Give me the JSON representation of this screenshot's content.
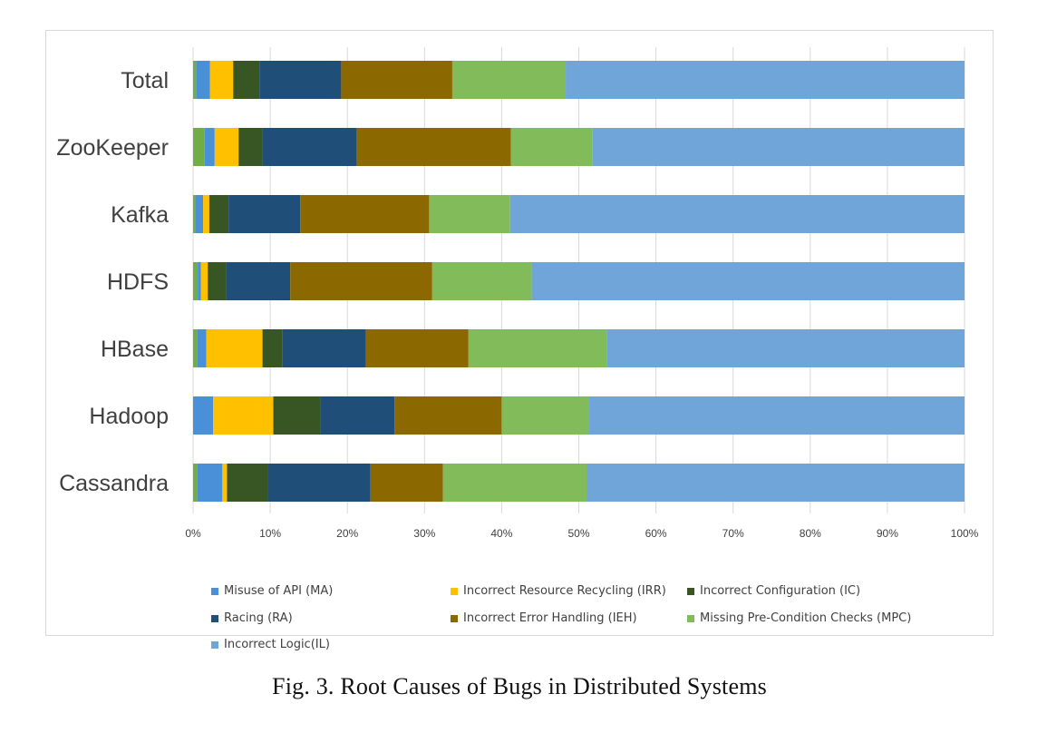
{
  "caption": "Fig. 3.  Root Causes of Bugs in Distributed Systems",
  "chart_data": {
    "type": "bar",
    "orientation": "horizontal",
    "stacked": "percent",
    "categories": [
      "Total",
      "ZooKeeper",
      "Kafka",
      "HDFS",
      "HBase",
      "Hadoop",
      "Cassandra"
    ],
    "x_ticks": [
      "0%",
      "10%",
      "20%",
      "30%",
      "40%",
      "50%",
      "60%",
      "70%",
      "80%",
      "90%",
      "100%"
    ],
    "xlim": [
      0,
      100
    ],
    "grid": "vertical",
    "legend_position": "bottom",
    "series": [
      {
        "name": "Misuse of API (MA)",
        "color": "#4a90d9",
        "values": [
          1.8,
          1.3,
          1.0,
          0.4,
          1.2,
          2.6,
          3.3
        ]
      },
      {
        "name": "Incorrect Resource Recycling (IRR)",
        "color": "#ffc000",
        "values": [
          3.0,
          3.1,
          0.8,
          0.9,
          7.3,
          7.8,
          0.6
        ]
      },
      {
        "name": "Incorrect Configuration (IC)",
        "color": "#375623",
        "values": [
          3.4,
          3.1,
          2.5,
          2.4,
          2.6,
          6.1,
          5.3
        ]
      },
      {
        "name": "Racing (RA)",
        "color": "#1f4e79",
        "values": [
          10.6,
          12.2,
          9.3,
          8.3,
          10.8,
          9.6,
          13.3
        ]
      },
      {
        "name": "Incorrect Error Handling (IEH)",
        "color": "#8b6900",
        "values": [
          14.4,
          20.0,
          16.7,
          18.4,
          13.3,
          13.9,
          9.4
        ]
      },
      {
        "name": "Missing Pre-Condition Checks (MPC)",
        "color": "#82bb5a",
        "values": [
          14.7,
          10.6,
          10.5,
          12.9,
          17.9,
          11.3,
          18.6
        ]
      },
      {
        "name": "Incorrect Logic(IL)",
        "color": "#6fa5d8",
        "values": [
          51.7,
          46.3,
          59.0,
          56.5,
          46.3,
          48.7,
          49.2
        ]
      }
    ],
    "first_segment_colors": [
      "#70ad47",
      "#70ad47",
      "#70ad47",
      "#70ad47",
      "#70ad47",
      "#4a90d9",
      "#70ad47"
    ],
    "first_segment_values": [
      0.4,
      1.5,
      0.3,
      0.6,
      0.5,
      0.0,
      0.5
    ]
  }
}
